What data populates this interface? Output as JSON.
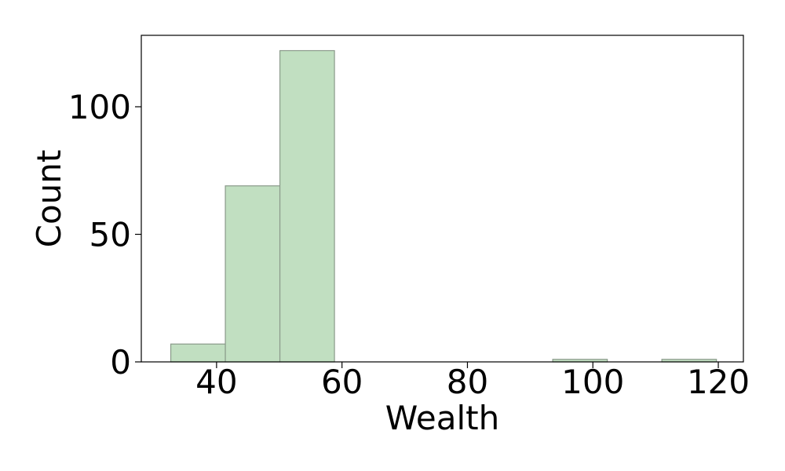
{
  "chart_data": {
    "type": "bar",
    "title": "",
    "xlabel": "Wealth",
    "ylabel": "Count",
    "xlim": [
      28.0,
      124.0
    ],
    "ylim": [
      0,
      128
    ],
    "x_ticks": [
      40,
      60,
      80,
      100,
      120
    ],
    "y_ticks": [
      0,
      50,
      100
    ],
    "bins": [
      {
        "x_start": 32.7,
        "x_end": 41.4,
        "count": 7
      },
      {
        "x_start": 41.4,
        "x_end": 50.1,
        "count": 69
      },
      {
        "x_start": 50.1,
        "x_end": 58.8,
        "count": 122
      },
      {
        "x_start": 58.8,
        "x_end": 67.5,
        "count": 0
      },
      {
        "x_start": 67.5,
        "x_end": 76.2,
        "count": 0
      },
      {
        "x_start": 76.2,
        "x_end": 84.9,
        "count": 0
      },
      {
        "x_start": 84.9,
        "x_end": 93.6,
        "count": 0
      },
      {
        "x_start": 93.6,
        "x_end": 102.3,
        "count": 1
      },
      {
        "x_start": 102.3,
        "x_end": 111.0,
        "count": 0
      },
      {
        "x_start": 111.0,
        "x_end": 119.7,
        "count": 1
      }
    ],
    "grid": false,
    "colors": {
      "bar_fill": "#c1dfc1",
      "bar_stroke": "#8a9a8a",
      "axis": "#000000"
    }
  }
}
